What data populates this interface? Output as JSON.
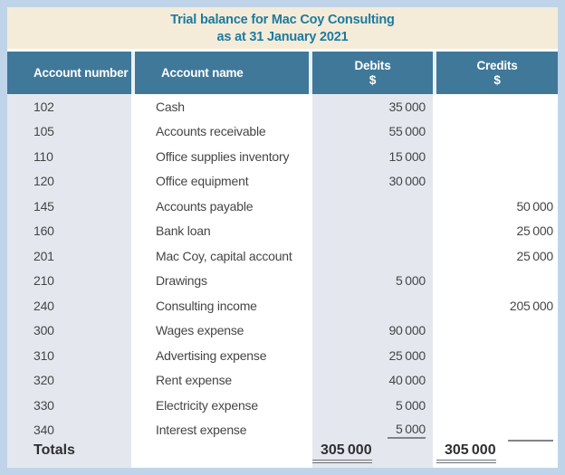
{
  "title": {
    "line1": "Trial balance for Mac Coy Consulting",
    "line2": "as at 31 January 2021"
  },
  "columns": {
    "account_number": "Account number",
    "account_name": "Account name",
    "debits": "Debits",
    "debits_unit": "$",
    "credits": "Credits",
    "credits_unit": "$"
  },
  "rows": [
    {
      "number": "102",
      "name": "Cash",
      "debit": "35 000",
      "credit": ""
    },
    {
      "number": "105",
      "name": "Accounts receivable",
      "debit": "55 000",
      "credit": ""
    },
    {
      "number": "110",
      "name": "Office supplies inventory",
      "debit": "15 000",
      "credit": ""
    },
    {
      "number": "120",
      "name": "Office equipment",
      "debit": "30 000",
      "credit": ""
    },
    {
      "number": "145",
      "name": "Accounts payable",
      "debit": "",
      "credit": "50 000"
    },
    {
      "number": "160",
      "name": "Bank loan",
      "debit": "",
      "credit": "25 000"
    },
    {
      "number": "201",
      "name": "Mac Coy, capital account",
      "debit": "",
      "credit": "25 000"
    },
    {
      "number": "210",
      "name": "Drawings",
      "debit": "5 000",
      "credit": ""
    },
    {
      "number": "240",
      "name": "Consulting income",
      "debit": "",
      "credit": "205 000"
    },
    {
      "number": "300",
      "name": "Wages expense",
      "debit": "90 000",
      "credit": ""
    },
    {
      "number": "310",
      "name": "Advertising expense",
      "debit": "25 000",
      "credit": ""
    },
    {
      "number": "320",
      "name": "Rent expense",
      "debit": "40 000",
      "credit": ""
    },
    {
      "number": "330",
      "name": "Electricity expense",
      "debit": "5 000",
      "credit": ""
    },
    {
      "number": "340",
      "name": "Interest expense",
      "debit": "5 000",
      "credit": "",
      "debit_underline": true,
      "credit_rule": true
    }
  ],
  "totals": {
    "label": "Totals",
    "debit": "305 000",
    "credit": "305 000"
  },
  "colors": {
    "page_bg": "#bfd4e9",
    "title_band_bg": "#f4ecd8",
    "title_text": "#1d7aa0",
    "header_bg": "#3f7899",
    "header_text": "#ffffff",
    "column_stripe": "#e4e8ee",
    "body_text": "#454547",
    "rule_line": "#82838a"
  }
}
